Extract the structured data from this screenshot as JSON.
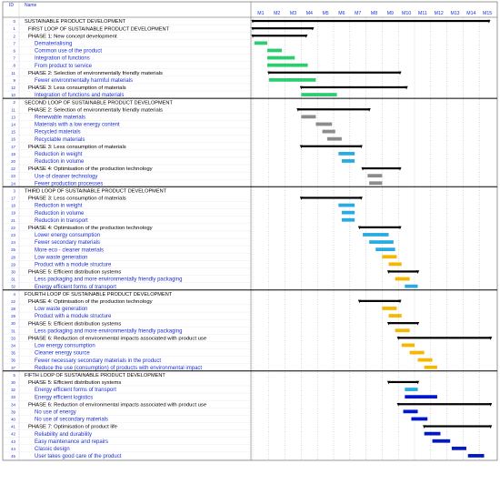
{
  "header": {
    "id_label": "ID",
    "name_label": "Name"
  },
  "colors": {
    "black": "#000000",
    "green": "#2ecc71",
    "grey": "#8c8c8c",
    "cyan": "#29abe2",
    "orange": "#f5b700",
    "blue": "#0018c8",
    "summary_text": "#000000",
    "task_text": "#1c2fd1",
    "grid": "#9aa0b4",
    "section_border": "#000000"
  },
  "chart_data": {
    "type": "gantt",
    "months": [
      "M1",
      "M2",
      "M3",
      "M4",
      "M5",
      "M6",
      "M7",
      "M8",
      "M9",
      "M10",
      "M11",
      "M12",
      "M13",
      "M14",
      "M15"
    ],
    "rows": [
      {
        "id": "0",
        "name": "SUSTAINABLE PRODUCT DEVELOPMENT",
        "kind": "summary",
        "start": 1.0,
        "end": 15.6,
        "color": "black"
      },
      {
        "id": "1",
        "name": "FIRST LOOP OF SUSTAINABLE PRODUCT DEVELOPMENT",
        "kind": "summary",
        "start": 1.0,
        "end": 4.7,
        "color": "black"
      },
      {
        "id": "2",
        "name": "PHASE 1: New concept development",
        "kind": "phase",
        "start": 1.0,
        "end": 4.3,
        "color": "black"
      },
      {
        "id": "7",
        "name": "Dematerialising",
        "kind": "task",
        "start": 1.1,
        "end": 1.9,
        "color": "green"
      },
      {
        "id": "6",
        "name": "Common use of the product",
        "kind": "task",
        "start": 1.9,
        "end": 2.8,
        "color": "green"
      },
      {
        "id": "7",
        "name": "Integration of functions",
        "kind": "task",
        "start": 1.9,
        "end": 3.6,
        "color": "green"
      },
      {
        "id": "8",
        "name": "From product to service",
        "kind": "task",
        "start": 1.9,
        "end": 4.4,
        "color": "green"
      },
      {
        "id": "11",
        "name": "PHASE 2: Selection of environmentally friendly materials",
        "kind": "phase",
        "start": 2.0,
        "end": 10.1,
        "color": "black"
      },
      {
        "id": "9",
        "name": "Fewer environmentally harmful materials",
        "kind": "task",
        "start": 2.0,
        "end": 4.9,
        "color": "green"
      },
      {
        "id": "12",
        "name": "PHASE 3: Less consumption of materials",
        "kind": "phase",
        "start": 4.0,
        "end": 10.5,
        "color": "black"
      },
      {
        "id": "10",
        "name": "Integration of functions and materials",
        "kind": "task",
        "start": 4.0,
        "end": 6.2,
        "color": "green"
      },
      {
        "id": "2",
        "name": "SECOND LOOP OF SUSTAINABLE PRODUCT DEVELOPMENT",
        "kind": "loop",
        "start": null,
        "end": null,
        "color": "black"
      },
      {
        "id": "11",
        "name": "PHASE 2: Selection of environmentally friendly materials",
        "kind": "phase",
        "start": 3.8,
        "end": 8.2,
        "color": "black"
      },
      {
        "id": "13",
        "name": "Renewable materials",
        "kind": "task",
        "start": 4.0,
        "end": 4.9,
        "color": "grey"
      },
      {
        "id": "14",
        "name": "Materials with a low energy content",
        "kind": "task",
        "start": 4.9,
        "end": 5.9,
        "color": "grey"
      },
      {
        "id": "15",
        "name": "Recycled materials",
        "kind": "task",
        "start": 5.3,
        "end": 6.1,
        "color": "grey"
      },
      {
        "id": "16",
        "name": "Recyclable materials",
        "kind": "task",
        "start": 5.6,
        "end": 6.5,
        "color": "grey"
      },
      {
        "id": "17",
        "name": "PHASE 3: Less consumption of materials",
        "kind": "phase",
        "start": 4.0,
        "end": 7.7,
        "color": "black"
      },
      {
        "id": "19",
        "name": "Reduction in weight",
        "kind": "task",
        "start": 6.3,
        "end": 7.3,
        "color": "cyan"
      },
      {
        "id": "20",
        "name": "Reduction in volume",
        "kind": "task",
        "start": 6.5,
        "end": 7.3,
        "color": "cyan"
      },
      {
        "id": "22",
        "name": "PHASE 4: Optimisation of the production technology",
        "kind": "phase",
        "start": 7.8,
        "end": 10.1,
        "color": "black"
      },
      {
        "id": "23",
        "name": "Use of cleaner technology",
        "kind": "task",
        "start": 8.1,
        "end": 9.0,
        "color": "grey"
      },
      {
        "id": "24",
        "name": "Fewer production processes",
        "kind": "task",
        "start": 8.2,
        "end": 9.0,
        "color": "grey"
      },
      {
        "id": "3",
        "name": "THIRD LOOP OF SUSTAINABLE PRODUCT DEVELOPMENT",
        "kind": "loop",
        "start": null,
        "end": null,
        "color": "black"
      },
      {
        "id": "17",
        "name": "PHASE 3: Less consumption of materials",
        "kind": "phase",
        "start": 4.0,
        "end": 7.7,
        "color": "black"
      },
      {
        "id": "18",
        "name": "Reduction in weight",
        "kind": "task",
        "start": 6.3,
        "end": 7.3,
        "color": "cyan"
      },
      {
        "id": "19",
        "name": "Reduction in volume",
        "kind": "task",
        "start": 6.5,
        "end": 7.3,
        "color": "cyan"
      },
      {
        "id": "21",
        "name": "Reduction in transport",
        "kind": "task",
        "start": 6.5,
        "end": 7.3,
        "color": "cyan"
      },
      {
        "id": "22",
        "name": "PHASE 4: Optimisation of the production technology",
        "kind": "phase",
        "start": 7.6,
        "end": 10.1,
        "color": "black"
      },
      {
        "id": "23",
        "name": "Lower energy consumption",
        "kind": "task",
        "start": 7.8,
        "end": 9.4,
        "color": "cyan"
      },
      {
        "id": "24",
        "name": "Fewer secondary materials",
        "kind": "task",
        "start": 8.2,
        "end": 9.7,
        "color": "cyan"
      },
      {
        "id": "25",
        "name": "More eco - cleaner materials",
        "kind": "task",
        "start": 8.6,
        "end": 9.8,
        "color": "cyan"
      },
      {
        "id": "28",
        "name": "Low waste generation",
        "kind": "task",
        "start": 9.0,
        "end": 9.9,
        "color": "orange"
      },
      {
        "id": "29",
        "name": "Product with a module structure",
        "kind": "task",
        "start": 9.4,
        "end": 10.2,
        "color": "orange"
      },
      {
        "id": "30",
        "name": "PHASE 5: Efficient distribution systems",
        "kind": "phase",
        "start": 9.4,
        "end": 11.2,
        "color": "black"
      },
      {
        "id": "31",
        "name": "Less packaging and more environmentally friendly packaging",
        "kind": "task",
        "start": 9.8,
        "end": 10.7,
        "color": "orange"
      },
      {
        "id": "32",
        "name": "Energy efficient forms of transport",
        "kind": "task",
        "start": 10.4,
        "end": 11.2,
        "color": "cyan"
      },
      {
        "id": "4",
        "name": "FOURTH LOOP OF SUSTAINABLE PRODUCT DEVELOPMENT",
        "kind": "loop",
        "start": null,
        "end": null,
        "color": "black"
      },
      {
        "id": "22",
        "name": "PHASE 4: Optimisation of the production technology",
        "kind": "phase",
        "start": 7.6,
        "end": 10.1,
        "color": "black"
      },
      {
        "id": "28",
        "name": "Low waste generation",
        "kind": "task",
        "start": 9.0,
        "end": 9.9,
        "color": "orange"
      },
      {
        "id": "29",
        "name": "Product with a module structure",
        "kind": "task",
        "start": 9.4,
        "end": 10.2,
        "color": "orange"
      },
      {
        "id": "30",
        "name": "PHASE 5: Efficient distribution systems",
        "kind": "phase",
        "start": 9.4,
        "end": 11.2,
        "color": "black"
      },
      {
        "id": "31",
        "name": "Less packaging and more environmentally friendly packaging",
        "kind": "task",
        "start": 9.8,
        "end": 10.7,
        "color": "orange"
      },
      {
        "id": "33",
        "name": "PHASE 6: Reduction of environmental impacts associated with product use",
        "kind": "phase",
        "start": 10.0,
        "end": 15.7,
        "color": "black"
      },
      {
        "id": "34",
        "name": "Low energy consumption",
        "kind": "task",
        "start": 10.2,
        "end": 11.0,
        "color": "orange"
      },
      {
        "id": "35",
        "name": "Cleaner energy source",
        "kind": "task",
        "start": 10.7,
        "end": 11.6,
        "color": "orange"
      },
      {
        "id": "36",
        "name": "Fewer necessary secondary materials in the product",
        "kind": "task",
        "start": 11.2,
        "end": 12.1,
        "color": "orange"
      },
      {
        "id": "37",
        "name": "Reduce the use (consumption) of products with environmental impact",
        "kind": "task",
        "start": 11.6,
        "end": 12.4,
        "color": "orange"
      },
      {
        "id": "5",
        "name": "FIFTH LOOP OF SUSTAINABLE PRODUCT DEVELOPMENT",
        "kind": "loop",
        "start": null,
        "end": null,
        "color": "black"
      },
      {
        "id": "30",
        "name": "PHASE 5: Efficient distribution systems",
        "kind": "phase",
        "start": 9.4,
        "end": 11.2,
        "color": "black"
      },
      {
        "id": "32",
        "name": "Energy efficient forms of transport",
        "kind": "task",
        "start": 10.4,
        "end": 11.2,
        "color": "cyan"
      },
      {
        "id": "33",
        "name": "Energy efficient logistics",
        "kind": "task",
        "start": 10.4,
        "end": 12.4,
        "color": "blue"
      },
      {
        "id": "34",
        "name": "PHASE 6: Reduction of environmental impacts associated with product use",
        "kind": "phase",
        "start": 10.0,
        "end": 15.7,
        "color": "black"
      },
      {
        "id": "39",
        "name": "No use of energy",
        "kind": "task",
        "start": 10.3,
        "end": 11.2,
        "color": "blue"
      },
      {
        "id": "40",
        "name": "No use of secondary materials",
        "kind": "task",
        "start": 10.8,
        "end": 11.8,
        "color": "blue"
      },
      {
        "id": "41",
        "name": "PHASE 7: Optimisation of product life",
        "kind": "phase",
        "start": 11.6,
        "end": 15.7,
        "color": "black"
      },
      {
        "id": "42",
        "name": "Reliability and durability",
        "kind": "task",
        "start": 11.6,
        "end": 12.6,
        "color": "blue"
      },
      {
        "id": "43",
        "name": "Easy maintenance and repairs",
        "kind": "task",
        "start": 12.1,
        "end": 13.2,
        "color": "blue"
      },
      {
        "id": "44",
        "name": "Classic design",
        "kind": "task",
        "start": 13.3,
        "end": 14.2,
        "color": "blue"
      },
      {
        "id": "45",
        "name": "User takes good care of the product",
        "kind": "task",
        "start": 14.3,
        "end": 15.3,
        "color": "blue"
      }
    ]
  }
}
